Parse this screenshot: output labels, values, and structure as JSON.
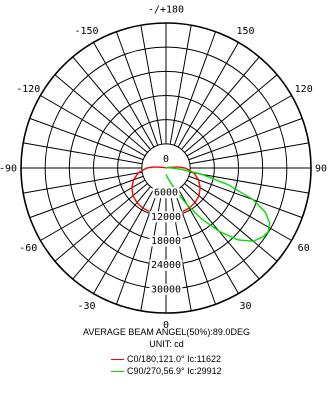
{
  "chart_data": {
    "type": "polar",
    "title": "",
    "angle_labels": [
      {
        "angle": 180,
        "text": "-/+180"
      },
      {
        "angle": 150,
        "text": "150"
      },
      {
        "angle": -150,
        "text": "-150"
      },
      {
        "angle": 120,
        "text": "120"
      },
      {
        "angle": -120,
        "text": "-120"
      },
      {
        "angle": 90,
        "text": "90"
      },
      {
        "angle": -90,
        "text": "-90"
      },
      {
        "angle": 60,
        "text": "60"
      },
      {
        "angle": -60,
        "text": "-60"
      },
      {
        "angle": 30,
        "text": "30"
      },
      {
        "angle": -30,
        "text": "-30"
      },
      {
        "angle": 0,
        "text": "0"
      }
    ],
    "radial_ticks": [
      {
        "value": 0,
        "text": "0"
      },
      {
        "value": 6000,
        "text": "6000"
      },
      {
        "value": 12000,
        "text": "12000"
      },
      {
        "value": 18000,
        "text": "18000"
      },
      {
        "value": 24000,
        "text": "24000"
      },
      {
        "value": 30000,
        "text": "30000"
      }
    ],
    "rmax": 36000,
    "ring_count": 6,
    "spoke_step_deg": 10,
    "series": [
      {
        "name": "C0/180,121.0° Ic:11622",
        "color": "#ff0000",
        "points": [
          [
            -180,
            0
          ],
          [
            -150,
            0
          ],
          [
            -120,
            0
          ],
          [
            -105,
            600
          ],
          [
            -95,
            3000
          ],
          [
            -90,
            4800
          ],
          [
            -80,
            7000
          ],
          [
            -70,
            8600
          ],
          [
            -60,
            9800
          ],
          [
            -50,
            10700
          ],
          [
            -40,
            11200
          ],
          [
            -30,
            11500
          ],
          [
            -20,
            11600
          ],
          [
            -10,
            11620
          ],
          [
            0,
            11622
          ],
          [
            10,
            11620
          ],
          [
            20,
            11600
          ],
          [
            30,
            11500
          ],
          [
            40,
            11200
          ],
          [
            50,
            10700
          ],
          [
            60,
            9800
          ],
          [
            70,
            8600
          ],
          [
            80,
            7000
          ],
          [
            90,
            4800
          ],
          [
            95,
            3000
          ],
          [
            105,
            600
          ],
          [
            120,
            0
          ],
          [
            150,
            0
          ],
          [
            180,
            0
          ]
        ]
      },
      {
        "name": "C90/270,56.9° Ic:29912",
        "color": "#00dd00",
        "points": [
          [
            0,
            1600
          ],
          [
            10,
            2500
          ],
          [
            20,
            4500
          ],
          [
            25,
            7000
          ],
          [
            30,
            10500
          ],
          [
            35,
            15500
          ],
          [
            40,
            20500
          ],
          [
            45,
            25200
          ],
          [
            50,
            28300
          ],
          [
            55,
            29600
          ],
          [
            58,
            29912
          ],
          [
            62,
            29200
          ],
          [
            66,
            27000
          ],
          [
            70,
            23000
          ],
          [
            75,
            16000
          ],
          [
            80,
            9000
          ],
          [
            85,
            4000
          ],
          [
            90,
            1500
          ],
          [
            100,
            400
          ],
          [
            120,
            0
          ],
          [
            180,
            0
          ]
        ]
      }
    ],
    "annotations": [
      "AVERAGE BEAM ANGEL(50%):89.0DEG",
      "UNIT: cd"
    ]
  }
}
